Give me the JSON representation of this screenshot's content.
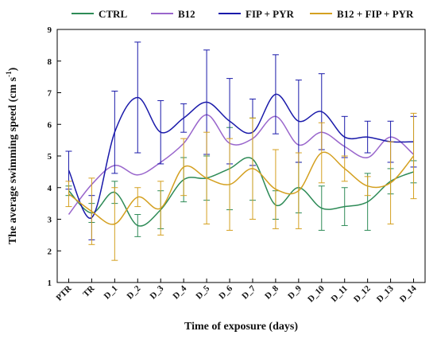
{
  "chart_data": {
    "type": "line",
    "title": "",
    "xlabel": "Time of exposure (days)",
    "ylabel_main": "The average swimming speed (cm s",
    "ylabel_sup": "-1",
    "ylabel_close": ")",
    "ylim": [
      1,
      9
    ],
    "yticks": [
      1,
      2,
      3,
      4,
      5,
      6,
      7,
      8,
      9
    ],
    "grid": false,
    "legend_position": "top",
    "categories": [
      "PTR",
      "TR",
      "D_1",
      "D_2",
      "D_3",
      "D_4",
      "D_5",
      "D_6",
      "D_7",
      "D_8",
      "D_9",
      "D_10",
      "D_11",
      "D_12",
      "D_13",
      "D_14"
    ],
    "series": [
      {
        "name": "CTRL",
        "color": "#2e8b57",
        "values": [
          3.9,
          3.2,
          3.85,
          2.8,
          3.3,
          4.25,
          4.3,
          4.6,
          4.9,
          3.45,
          4.0,
          3.35,
          3.4,
          3.55,
          4.2,
          4.5
        ],
        "err": [
          0.15,
          0.3,
          0.35,
          0.35,
          0.6,
          0.7,
          0.7,
          1.3,
          1.3,
          0.45,
          0.8,
          0.7,
          0.6,
          0.9,
          0.4,
          0.35
        ]
      },
      {
        "name": "B12",
        "color": "#9966cc",
        "values": [
          3.15,
          4.1,
          4.7,
          4.4,
          4.8,
          5.4,
          6.3,
          5.4,
          5.55,
          6.25,
          5.35,
          5.75,
          5.3,
          4.95,
          5.6,
          5.05
        ]
      },
      {
        "name": "FIP + PYR",
        "color": "#1a1aaa",
        "values": [
          4.55,
          3.05,
          5.75,
          6.85,
          5.75,
          6.2,
          6.7,
          6.1,
          5.75,
          6.95,
          6.1,
          6.4,
          5.6,
          5.6,
          5.45,
          5.45
        ],
        "err": [
          0.6,
          0.7,
          1.3,
          1.75,
          1.0,
          0.45,
          1.65,
          1.35,
          1.05,
          1.25,
          1.3,
          1.2,
          0.65,
          0.5,
          0.65,
          0.8
        ]
      },
      {
        "name": "B12 + FIP + PYR",
        "color": "#d4a020",
        "values": [
          3.8,
          3.25,
          2.85,
          3.7,
          3.35,
          4.65,
          4.3,
          4.1,
          4.6,
          3.95,
          3.9,
          5.1,
          4.6,
          4.05,
          4.15,
          5.0
        ],
        "err": [
          0.4,
          1.05,
          1.15,
          0.3,
          0.85,
          0.9,
          1.45,
          1.45,
          1.6,
          1.25,
          1.2,
          0.95,
          0.4,
          0.3,
          1.3,
          1.35
        ]
      }
    ]
  }
}
